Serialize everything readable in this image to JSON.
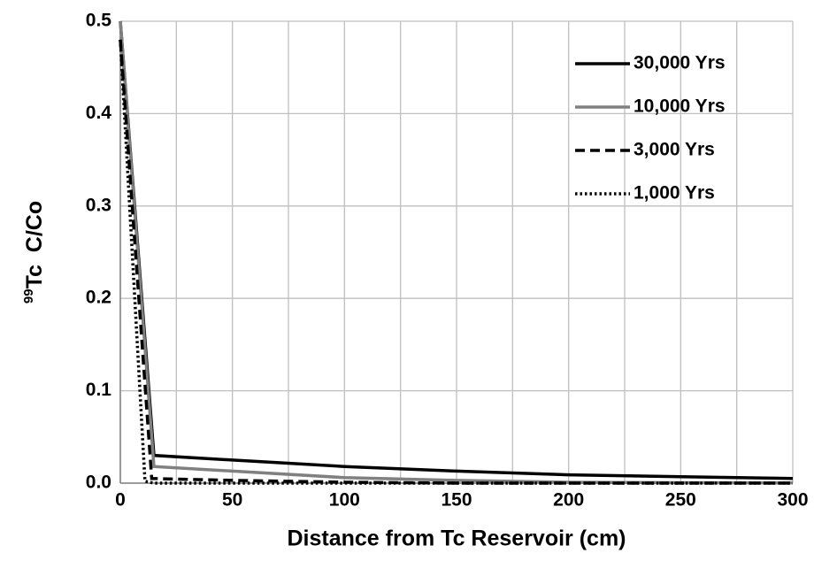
{
  "chart_data": {
    "type": "line",
    "xlabel": "Distance from Tc Reservoir (cm)",
    "ylabel_superscript": "99",
    "ylabel": "Tc  C/Co",
    "xlim": [
      0,
      300
    ],
    "ylim": [
      0,
      0.5
    ],
    "xticks": [
      0,
      50,
      100,
      150,
      200,
      250,
      300
    ],
    "xgrid": [
      0,
      25,
      50,
      75,
      100,
      125,
      150,
      175,
      200,
      225,
      250,
      275,
      300
    ],
    "yticks": [
      {
        "value": 0,
        "label": "0.0"
      },
      0.1,
      0.2,
      0.3,
      0.4,
      0.5
    ],
    "grid": true,
    "legend": "upper right",
    "series": [
      {
        "name": "30,000 Yrs",
        "color": "#000000",
        "dash": "solid",
        "x": [
          0,
          15,
          50,
          100,
          150,
          200,
          250,
          300
        ],
        "values": [
          0.5,
          0.03,
          0.025,
          0.018,
          0.013,
          0.009,
          0.007,
          0.005
        ]
      },
      {
        "name": "10,000 Yrs",
        "color": "#808080",
        "dash": "solid",
        "x": [
          0,
          15,
          50,
          100,
          150,
          200,
          250,
          300
        ],
        "values": [
          0.5,
          0.018,
          0.013,
          0.006,
          0.003,
          0.001,
          0.0005,
          0.0002
        ]
      },
      {
        "name": "3,000 Yrs",
        "color": "#000000",
        "dash": "dash",
        "x": [
          0,
          14,
          50,
          100,
          150,
          200,
          250,
          300
        ],
        "values": [
          0.48,
          0.005,
          0.003,
          0.001,
          0,
          0,
          0,
          0
        ]
      },
      {
        "name": "1,000 Yrs",
        "color": "#000000",
        "dash": "dot",
        "x": [
          0,
          11,
          15,
          50,
          100,
          150,
          200,
          250,
          300
        ],
        "values": [
          0.48,
          0.002,
          0,
          0,
          0,
          0,
          0,
          0,
          0
        ]
      }
    ]
  }
}
